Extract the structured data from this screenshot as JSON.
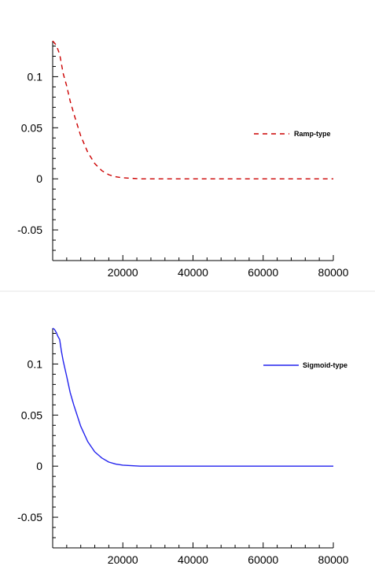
{
  "chart_data": [
    {
      "type": "line",
      "xlim": [
        0,
        80000
      ],
      "ylim": [
        -0.08,
        0.135
      ],
      "x_ticks": [
        20000,
        40000,
        60000,
        80000
      ],
      "x_tick_labels": [
        "20000",
        "40000",
        "60000",
        "80000"
      ],
      "y_ticks": [
        0.1,
        0.05,
        0,
        -0.05
      ],
      "y_tick_labels": [
        "0.1",
        "0.05",
        "0",
        "-0.05"
      ],
      "grid": false,
      "legend_position": "right",
      "series": [
        {
          "name": "Ramp-type",
          "color": "#cc0000",
          "line_style": "dashed",
          "x": [
            0,
            1000,
            2000,
            3000,
            4000,
            5000,
            6000,
            8000,
            10000,
            12000,
            14000,
            16000,
            18000,
            20000,
            25000,
            30000,
            40000,
            50000,
            60000,
            70000,
            80000
          ],
          "y": [
            0.135,
            0.131,
            0.122,
            0.103,
            0.091,
            0.076,
            0.064,
            0.042,
            0.026,
            0.015,
            0.008,
            0.004,
            0.002,
            0.001,
            0.0,
            0.0,
            0.0,
            0.0,
            0.0,
            0.0,
            0.0
          ]
        }
      ]
    },
    {
      "type": "line",
      "xlim": [
        0,
        80000
      ],
      "ylim": [
        -0.08,
        0.135
      ],
      "x_ticks": [
        20000,
        40000,
        60000,
        80000
      ],
      "x_tick_labels": [
        "20000",
        "40000",
        "60000",
        "80000"
      ],
      "y_ticks": [
        0.1,
        0.05,
        0,
        -0.05
      ],
      "y_tick_labels": [
        "0.1",
        "0.05",
        "0",
        "-0.05"
      ],
      "grid": false,
      "legend_position": "top-right",
      "series": [
        {
          "name": "Sigmoid-type",
          "color": "#2222ee",
          "line_style": "solid",
          "x": [
            0,
            500,
            1000,
            1500,
            2000,
            2500,
            3000,
            4000,
            5000,
            6000,
            8000,
            10000,
            12000,
            14000,
            16000,
            18000,
            20000,
            25000,
            30000,
            40000,
            50000,
            60000,
            70000,
            80000
          ],
          "y": [
            0.135,
            0.134,
            0.131,
            0.127,
            0.124,
            0.112,
            0.103,
            0.088,
            0.072,
            0.06,
            0.039,
            0.024,
            0.014,
            0.008,
            0.004,
            0.002,
            0.001,
            0.0,
            0.0,
            0.0,
            0.0,
            0.0,
            0.0,
            0.0
          ]
        }
      ]
    }
  ]
}
